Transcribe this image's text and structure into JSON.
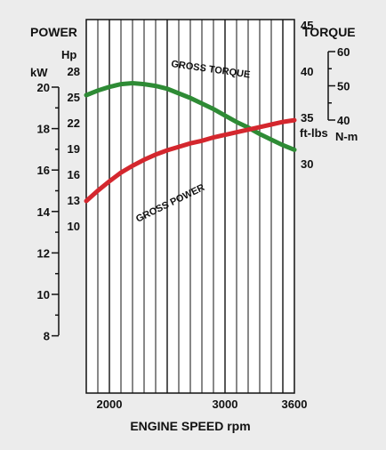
{
  "chart_data": {
    "type": "line",
    "x_axis": {
      "label": "ENGINE SPEED rpm",
      "range": [
        1800,
        3600
      ],
      "ticks": [
        2000,
        3000,
        3600
      ],
      "tick_labels": [
        "2000",
        "3000",
        "3600"
      ]
    },
    "left_axes": {
      "header": "POWER",
      "hp": {
        "unit": "Hp",
        "ticks": [
          "10",
          "13",
          "16",
          "19",
          "22",
          "25",
          "28"
        ]
      },
      "kw": {
        "unit": "kW",
        "ticks": [
          "8",
          "10",
          "12",
          "14",
          "16",
          "18",
          "20"
        ]
      }
    },
    "right_axes": {
      "header": "TORQUE",
      "ftlbs": {
        "unit": "ft-lbs",
        "ticks": [
          "30",
          "35",
          "40",
          "45"
        ]
      },
      "nm": {
        "unit": "N-m",
        "ticks": [
          "40",
          "50",
          "60"
        ]
      }
    },
    "series": [
      {
        "name": "GROSS TORQUE",
        "color": "#2e8b35",
        "axis": "torque_ftlbs",
        "x": [
          1800,
          1900,
          2000,
          2100,
          2200,
          2300,
          2400,
          2500,
          2600,
          2700,
          2800,
          2900,
          3000,
          3100,
          3200,
          3300,
          3400,
          3500,
          3600
        ],
        "y": [
          37.4,
          37.9,
          38.3,
          38.6,
          38.7,
          38.6,
          38.4,
          38.1,
          37.6,
          37.1,
          36.5,
          35.9,
          35.2,
          34.5,
          33.9,
          33.2,
          32.6,
          32.0,
          31.5
        ]
      },
      {
        "name": "GROSS POWER",
        "color": "#d4272e",
        "axis": "power_hp",
        "x": [
          1800,
          1900,
          2000,
          2100,
          2200,
          2300,
          2400,
          2500,
          2600,
          2700,
          2800,
          2900,
          3000,
          3100,
          3200,
          3300,
          3400,
          3500,
          3600
        ],
        "y": [
          12.9,
          14.1,
          15.2,
          16.2,
          17.0,
          17.7,
          18.3,
          18.8,
          19.2,
          19.6,
          19.9,
          20.3,
          20.6,
          20.9,
          21.2,
          21.5,
          21.8,
          22.1,
          22.3
        ]
      }
    ],
    "grid": true
  }
}
